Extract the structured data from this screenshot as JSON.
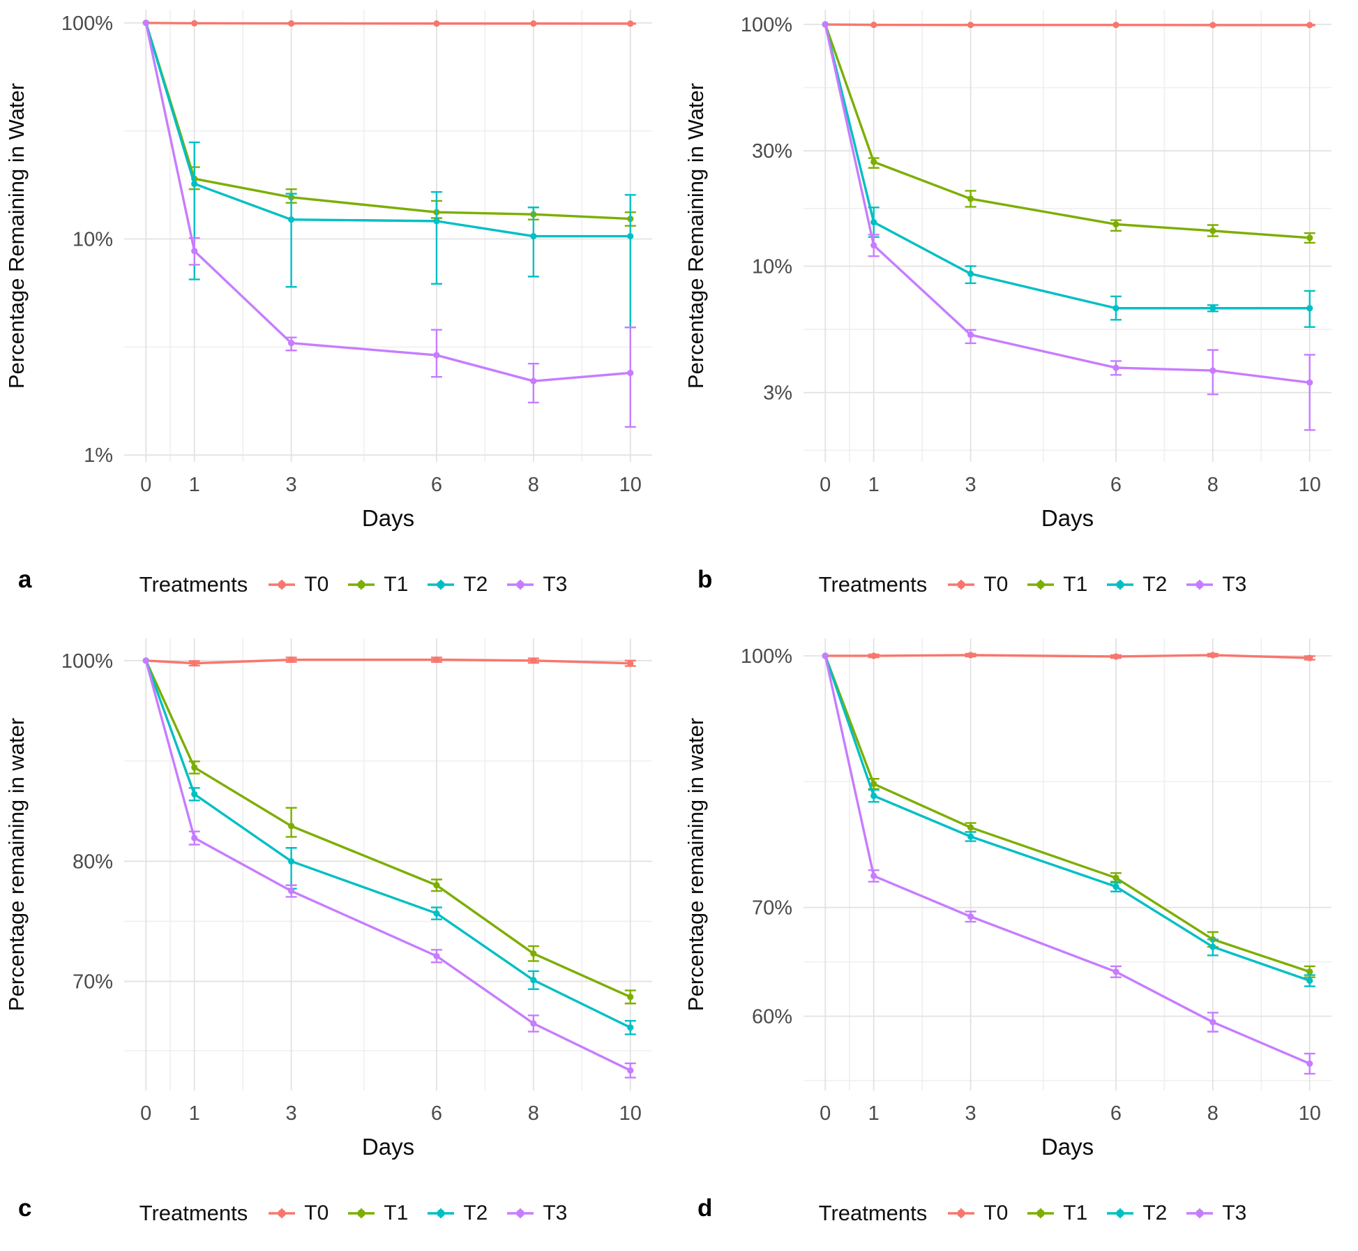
{
  "figure": {
    "background": "#ffffff",
    "grid_major_color": "#e2e2e2",
    "grid_minor_color": "#efefef",
    "tick_text_color": "#4a4a4a",
    "axis_title_color": "#0a0a0a"
  },
  "treatment_colors": {
    "T0": "#F8766D",
    "T1": "#7CAE00",
    "T2": "#00BFC4",
    "T3": "#C77CFF"
  },
  "chart_data": [
    {
      "type": "line",
      "letter": "a",
      "legend_title": "Treatments",
      "legend_position": "bottom",
      "title": "",
      "xlabel": "Days",
      "ylabel": "Percentage Remaining in Water",
      "x": [
        0,
        1,
        3,
        6,
        8,
        10
      ],
      "x_ticks": [
        0,
        1,
        3,
        6,
        8,
        10
      ],
      "x_minor": [
        0.5,
        2,
        4.5,
        7,
        9
      ],
      "xlim": [
        -0.45,
        10.45
      ],
      "y_scale": "log10",
      "ylim": [
        0.93,
        115
      ],
      "y_ticks": [
        {
          "v": 100,
          "label": "100%"
        },
        {
          "v": 10,
          "label": "10%"
        },
        {
          "v": 1,
          "label": "1%"
        }
      ],
      "y_minor": [
        31.62,
        3.162
      ],
      "grid": true,
      "series": [
        {
          "name": "T0",
          "color": "#F8766D",
          "values": [
            100,
            99.6,
            99.4,
            99.3,
            99.3,
            99.2
          ],
          "err_lo": [
            100,
            99.3,
            99.1,
            99.0,
            99.0,
            98.9
          ],
          "err_hi": [
            100,
            99.9,
            99.7,
            99.6,
            99.6,
            99.5
          ]
        },
        {
          "name": "T1",
          "color": "#7CAE00",
          "values": [
            100,
            19.0,
            15.6,
            13.3,
            13.0,
            12.4
          ],
          "err_lo": [
            100,
            17.0,
            14.7,
            12.5,
            12.3,
            11.5
          ],
          "err_hi": [
            100,
            21.5,
            17.0,
            15.0,
            14.0,
            13.3
          ]
        },
        {
          "name": "T2",
          "color": "#00BFC4",
          "values": [
            100,
            18.0,
            12.3,
            12.1,
            10.3,
            10.3
          ],
          "err_lo": [
            100,
            6.5,
            6.0,
            6.2,
            6.7,
            3.9
          ],
          "err_hi": [
            100,
            28.0,
            16.2,
            16.5,
            14.0,
            16.0
          ]
        },
        {
          "name": "T3",
          "color": "#C77CFF",
          "values": [
            100,
            8.8,
            3.3,
            2.9,
            2.2,
            2.4
          ],
          "err_lo": [
            100,
            7.6,
            3.05,
            2.3,
            1.75,
            1.35
          ],
          "err_hi": [
            100,
            10.1,
            3.5,
            3.8,
            2.65,
            3.9
          ]
        }
      ]
    },
    {
      "type": "line",
      "letter": "b",
      "legend_title": "Treatments",
      "legend_position": "bottom",
      "title": "",
      "xlabel": "Days",
      "ylabel": "Percentage Remaining in Water",
      "x": [
        0,
        1,
        3,
        6,
        8,
        10
      ],
      "x_ticks": [
        0,
        1,
        3,
        6,
        8,
        10
      ],
      "x_minor": [
        0.5,
        2,
        4.5,
        7,
        9
      ],
      "xlim": [
        -0.45,
        10.45
      ],
      "y_scale": "log10",
      "ylim": [
        1.55,
        115
      ],
      "y_ticks": [
        {
          "v": 100,
          "label": "100%"
        },
        {
          "v": 30,
          "label": "30%"
        },
        {
          "v": 10,
          "label": "10%"
        },
        {
          "v": 3,
          "label": "3%"
        }
      ],
      "y_minor": [
        54.77,
        17.32,
        5.477,
        1.732
      ],
      "grid": true,
      "series": [
        {
          "name": "T0",
          "color": "#F8766D",
          "values": [
            100,
            99.6,
            99.5,
            99.5,
            99.4,
            99.4
          ],
          "err_lo": [
            100,
            99.3,
            99.2,
            99.2,
            99.1,
            99.1
          ],
          "err_hi": [
            100,
            99.9,
            99.8,
            99.8,
            99.7,
            99.7
          ]
        },
        {
          "name": "T1",
          "color": "#7CAE00",
          "values": [
            100,
            27.0,
            19.0,
            14.9,
            14.0,
            13.1
          ],
          "err_lo": [
            100,
            25.5,
            17.6,
            14.0,
            13.3,
            12.5
          ],
          "err_hi": [
            100,
            28.0,
            20.5,
            15.5,
            14.8,
            13.7
          ]
        },
        {
          "name": "T2",
          "color": "#00BFC4",
          "values": [
            100,
            15.2,
            9.3,
            6.7,
            6.7,
            6.7
          ],
          "err_lo": [
            100,
            13.2,
            8.5,
            6.0,
            6.5,
            5.6
          ],
          "err_hi": [
            100,
            17.5,
            10.0,
            7.5,
            6.9,
            7.9
          ]
        },
        {
          "name": "T3",
          "color": "#C77CFF",
          "values": [
            100,
            12.2,
            5.2,
            3.8,
            3.7,
            3.3
          ],
          "err_lo": [
            100,
            11.0,
            4.8,
            3.55,
            2.95,
            2.1
          ],
          "err_hi": [
            100,
            13.5,
            5.45,
            4.05,
            4.5,
            4.3
          ]
        }
      ]
    },
    {
      "type": "line",
      "letter": "c",
      "legend_title": "Treatments",
      "legend_position": "bottom",
      "title": "",
      "xlabel": "Days",
      "ylabel": "Percentage remaining in water",
      "x": [
        0,
        1,
        3,
        6,
        8,
        10
      ],
      "x_ticks": [
        0,
        1,
        3,
        6,
        8,
        10
      ],
      "x_minor": [
        0.5,
        2,
        4.5,
        7,
        9
      ],
      "xlim": [
        -0.45,
        10.45
      ],
      "y_scale": "log10",
      "ylim": [
        62,
        102.5
      ],
      "y_ticks": [
        {
          "v": 100,
          "label": "100%"
        },
        {
          "v": 80,
          "label": "80%"
        },
        {
          "v": 70,
          "label": "70%"
        }
      ],
      "y_minor": [
        89.44,
        74.83,
        64.81
      ],
      "grid": true,
      "series": [
        {
          "name": "T0",
          "color": "#F8766D",
          "values": [
            100,
            99.7,
            100.1,
            100.1,
            100.0,
            99.7
          ],
          "err_lo": [
            100,
            99.45,
            99.85,
            99.85,
            99.75,
            99.4
          ],
          "err_hi": [
            100,
            99.95,
            100.35,
            100.35,
            100.25,
            100.0
          ]
        },
        {
          "name": "T1",
          "color": "#7CAE00",
          "values": [
            100,
            88.8,
            83.2,
            77.9,
            72.2,
            68.8
          ],
          "err_lo": [
            100,
            88.2,
            82.2,
            77.4,
            71.6,
            68.3
          ],
          "err_hi": [
            100,
            89.4,
            84.9,
            78.4,
            72.8,
            69.3
          ]
        },
        {
          "name": "T2",
          "color": "#00BFC4",
          "values": [
            100,
            86.2,
            80.0,
            75.5,
            70.1,
            66.5
          ],
          "err_lo": [
            100,
            85.6,
            77.6,
            75.0,
            69.4,
            66.0
          ],
          "err_hi": [
            100,
            86.8,
            81.2,
            76.0,
            70.8,
            67.0
          ]
        },
        {
          "name": "T3",
          "color": "#C77CFF",
          "values": [
            100,
            82.1,
            77.4,
            72.0,
            66.8,
            63.4
          ],
          "err_lo": [
            100,
            81.5,
            76.9,
            71.5,
            66.2,
            62.9
          ],
          "err_hi": [
            100,
            82.7,
            77.9,
            72.5,
            67.4,
            63.9
          ]
        }
      ]
    },
    {
      "type": "line",
      "letter": "d",
      "legend_title": "Treatments",
      "legend_position": "bottom",
      "title": "",
      "xlabel": "Days",
      "ylabel": "Percentage remaining in water",
      "x": [
        0,
        1,
        3,
        6,
        8,
        10
      ],
      "x_ticks": [
        0,
        1,
        3,
        6,
        8,
        10
      ],
      "x_minor": [
        0.5,
        2,
        4.5,
        7,
        9
      ],
      "xlim": [
        -0.45,
        10.45
      ],
      "y_scale": "log10",
      "ylim": [
        54,
        102.5
      ],
      "y_ticks": [
        {
          "v": 100,
          "label": "100%"
        },
        {
          "v": 70,
          "label": "70%"
        },
        {
          "v": 60,
          "label": "60%"
        }
      ],
      "y_minor": [
        83.67,
        64.81,
        54.77
      ],
      "grid": true,
      "series": [
        {
          "name": "T0",
          "color": "#F8766D",
          "values": [
            100,
            100.0,
            100.1,
            99.9,
            100.1,
            99.7
          ],
          "err_lo": [
            100,
            99.8,
            99.9,
            99.7,
            99.9,
            99.45
          ],
          "err_hi": [
            100,
            100.2,
            100.3,
            100.1,
            100.3,
            99.95
          ]
        },
        {
          "name": "T1",
          "color": "#7CAE00",
          "values": [
            100,
            83.4,
            78.4,
            73.0,
            66.9,
            63.9
          ],
          "err_lo": [
            100,
            82.8,
            77.9,
            72.5,
            66.2,
            63.4
          ],
          "err_hi": [
            100,
            84.0,
            78.9,
            73.5,
            67.6,
            64.4
          ]
        },
        {
          "name": "T2",
          "color": "#00BFC4",
          "values": [
            100,
            82.0,
            77.4,
            72.1,
            66.2,
            63.1
          ],
          "err_lo": [
            100,
            81.3,
            76.9,
            71.6,
            65.4,
            62.6
          ],
          "err_hi": [
            100,
            82.7,
            77.9,
            72.6,
            66.9,
            63.6
          ]
        },
        {
          "name": "T3",
          "color": "#C77CFF",
          "values": [
            100,
            73.2,
            69.1,
            63.9,
            59.5,
            56.1
          ],
          "err_lo": [
            100,
            72.6,
            68.6,
            63.4,
            58.7,
            55.3
          ],
          "err_hi": [
            100,
            73.8,
            69.6,
            64.4,
            60.3,
            56.9
          ]
        }
      ]
    }
  ]
}
